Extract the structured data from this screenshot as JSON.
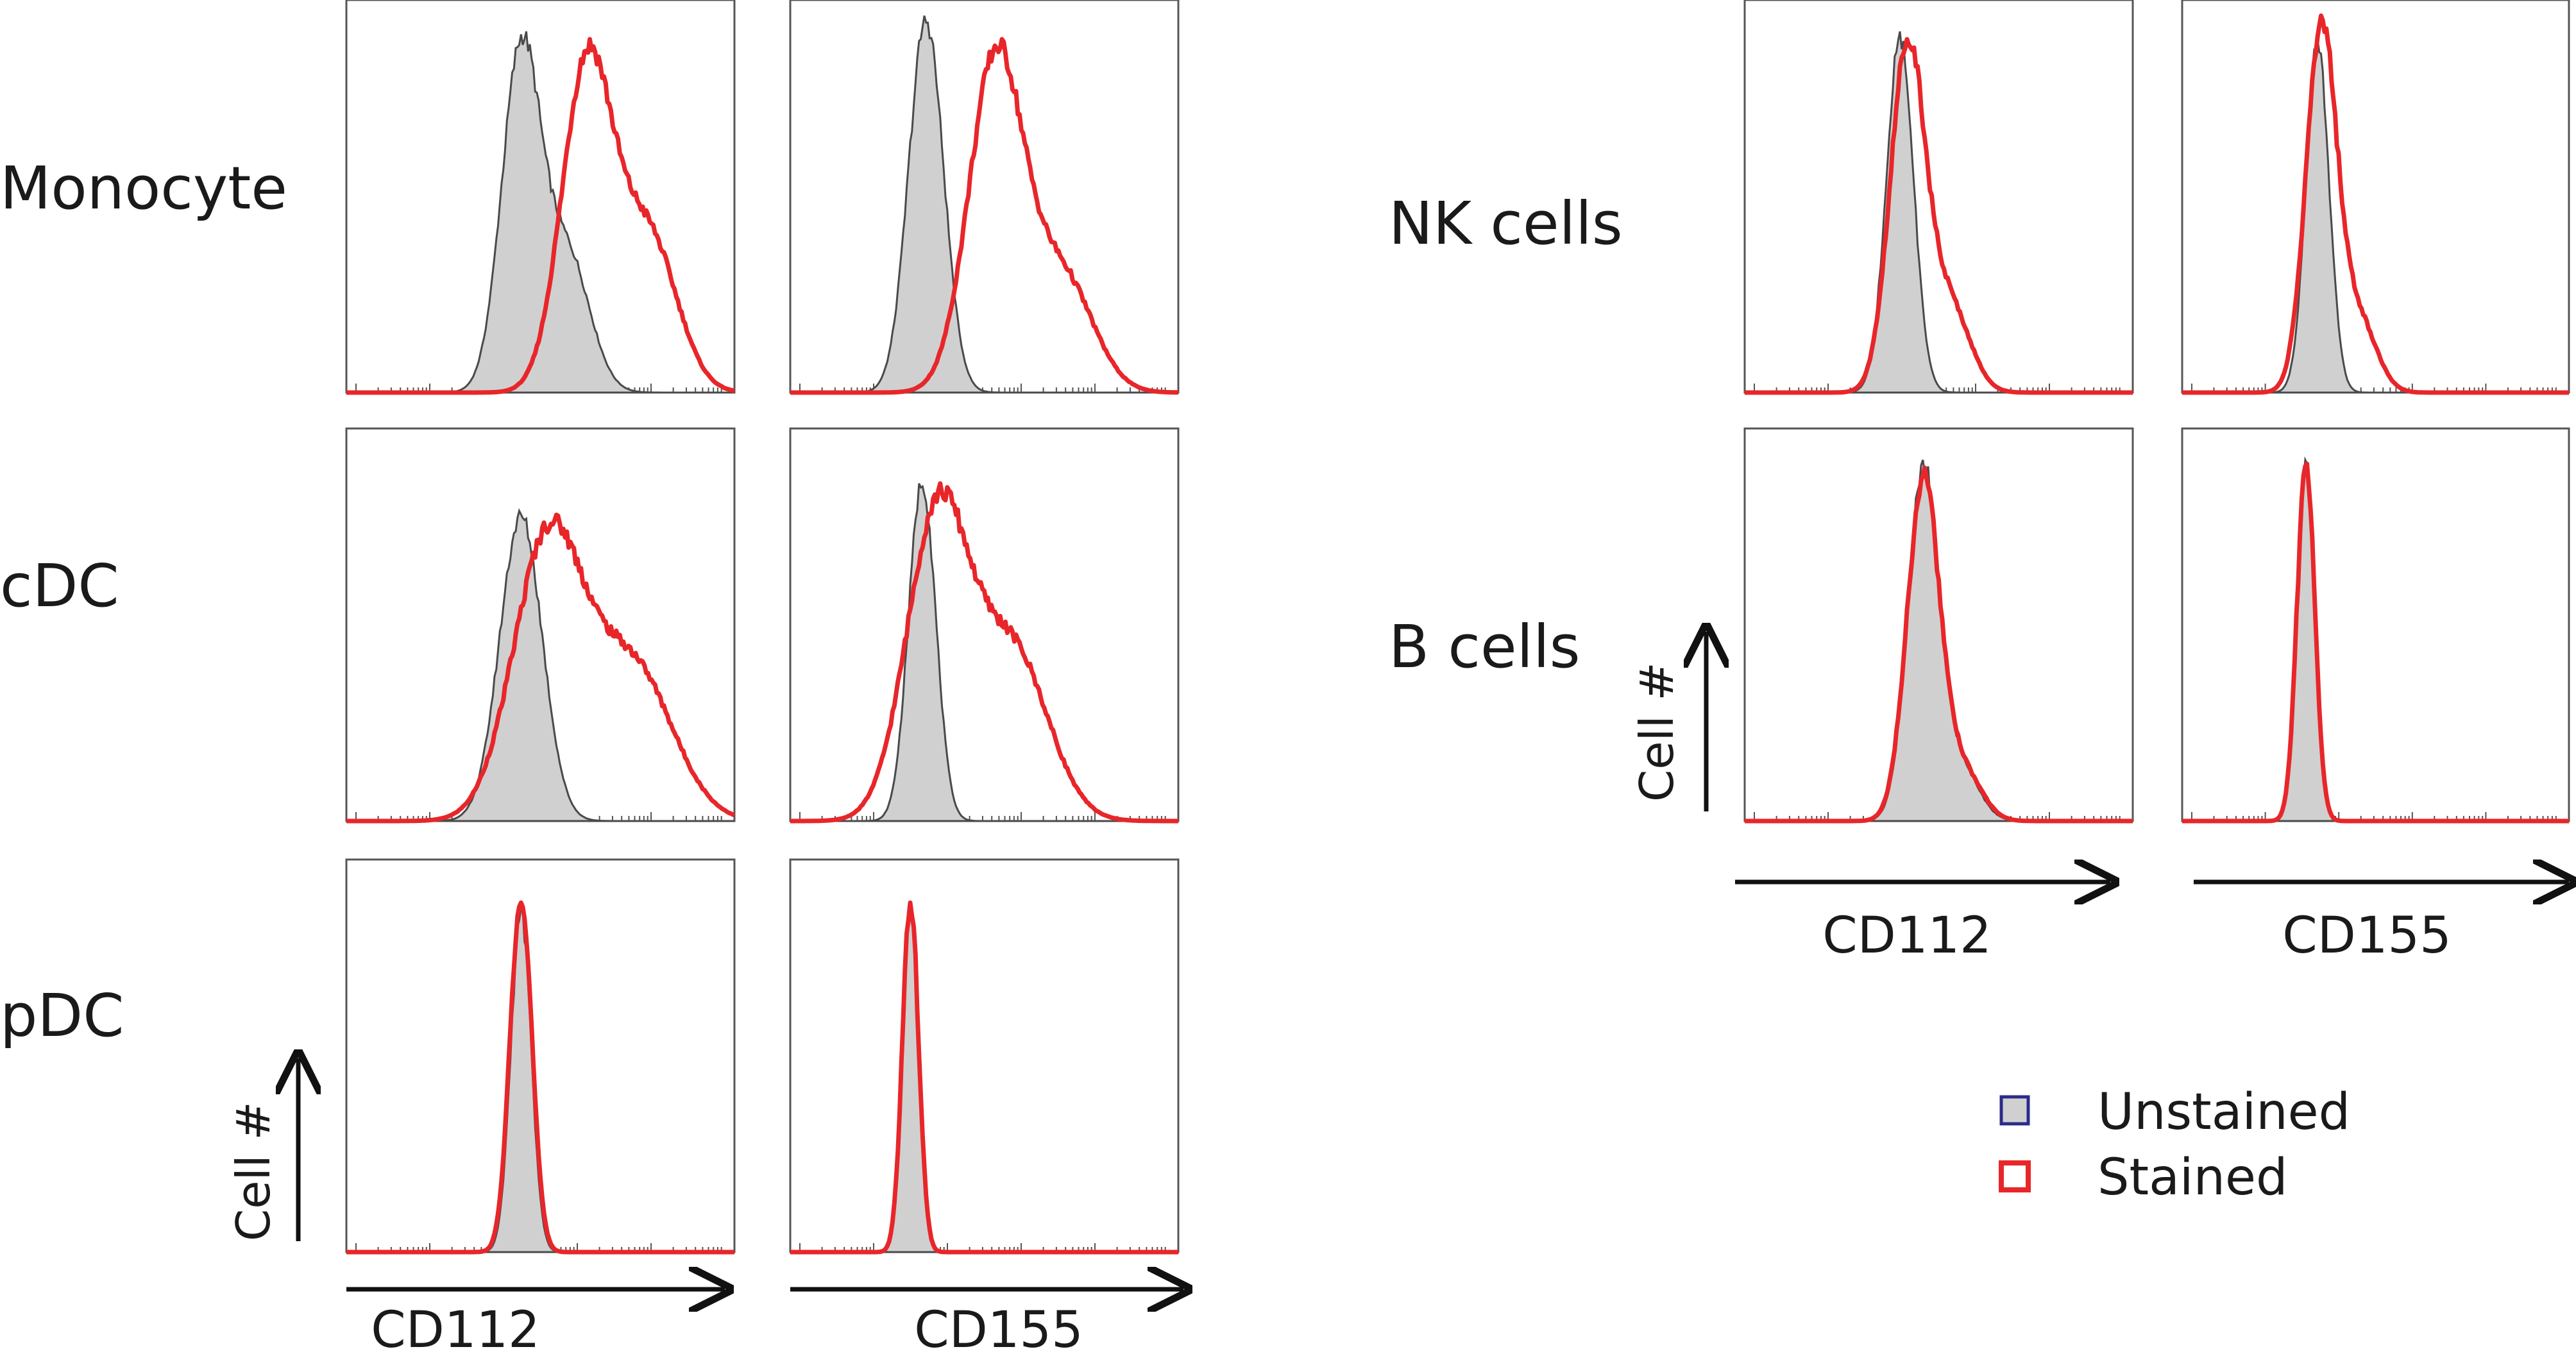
{
  "chart_data": {
    "type": "histogram-overlay",
    "title": "",
    "x_scale": "log fluorescence (arbitrary units)",
    "legend": {
      "position": "bottom-right",
      "items": [
        {
          "key": "unstained",
          "label": "Unstained",
          "fill": "#d0d0d0",
          "stroke": "#2b2b8a"
        },
        {
          "key": "stained",
          "label": "Stained",
          "fill": "#ffffff",
          "stroke": "#e8262a"
        }
      ]
    },
    "colors": {
      "unstained_fill": "#d0d0d0",
      "unstained_line": "#4a4a4a",
      "stained_line": "#e8262a",
      "frame": "#555555",
      "text": "#1a1a1a"
    },
    "x_label_text": {
      "cd112": "CD112",
      "cd155": "CD155"
    },
    "y_label_text": "Cell #",
    "groups": [
      {
        "name": "left",
        "x_labels": [
          "CD112",
          "CD155"
        ],
        "y_label": "Cell #",
        "rows": [
          {
            "label": "Monocyte",
            "panels": [
              {
                "marker": "CD112",
                "unstained": {
                  "mode": 0.45,
                  "sd": 0.05,
                  "shoulder": 0.4,
                  "height": 0.92
                },
                "stained": {
                  "mode": 0.62,
                  "sd": 0.065,
                  "shoulder": 0.48,
                  "height": 0.9
                }
              },
              {
                "marker": "CD155",
                "unstained": {
                  "mode": 0.35,
                  "sd": 0.045,
                  "shoulder": 0.0,
                  "height": 0.96
                },
                "stained": {
                  "mode": 0.53,
                  "sd": 0.07,
                  "shoulder": 0.35,
                  "height": 0.9
                }
              }
            ]
          },
          {
            "label": "cDC",
            "panels": [
              {
                "marker": "CD112",
                "unstained": {
                  "mode": 0.45,
                  "sd": 0.055,
                  "shoulder": 0.0,
                  "height": 0.79
                },
                "stained": {
                  "mode": 0.52,
                  "sd": 0.09,
                  "shoulder": 0.55,
                  "height": 0.78
                }
              },
              {
                "marker": "CD155",
                "unstained": {
                  "mode": 0.34,
                  "sd": 0.035,
                  "shoulder": 0.0,
                  "height": 0.86
                },
                "stained": {
                  "mode": 0.38,
                  "sd": 0.08,
                  "shoulder": 0.55,
                  "height": 0.86
                }
              }
            ]
          },
          {
            "label": "pDC",
            "panels": [
              {
                "marker": "CD112",
                "unstained": {
                  "mode": 0.45,
                  "sd": 0.026,
                  "shoulder": 0.0,
                  "height": 0.88
                },
                "stained": {
                  "mode": 0.45,
                  "sd": 0.028,
                  "shoulder": 0.0,
                  "height": 0.89
                }
              },
              {
                "marker": "CD155",
                "unstained": {
                  "mode": 0.31,
                  "sd": 0.02,
                  "shoulder": 0.0,
                  "height": 0.88
                },
                "stained": {
                  "mode": 0.31,
                  "sd": 0.021,
                  "shoulder": 0.0,
                  "height": 0.89
                }
              }
            ]
          }
        ]
      },
      {
        "name": "right",
        "x_labels": [
          "CD112",
          "CD155"
        ],
        "y_label": "Cell #",
        "rows": [
          {
            "label": "NK cells",
            "panels": [
              {
                "marker": "CD112",
                "unstained": {
                  "mode": 0.4,
                  "sd": 0.035,
                  "shoulder": 0.0,
                  "height": 0.92
                },
                "stained": {
                  "mode": 0.42,
                  "sd": 0.045,
                  "shoulder": 0.25,
                  "height": 0.9
                }
              },
              {
                "marker": "CD155",
                "unstained": {
                  "mode": 0.35,
                  "sd": 0.03,
                  "shoulder": 0.0,
                  "height": 0.9
                },
                "stained": {
                  "mode": 0.36,
                  "sd": 0.04,
                  "shoulder": 0.2,
                  "height": 0.96
                }
              }
            ]
          },
          {
            "label": "B cells",
            "panels": [
              {
                "marker": "CD112",
                "unstained": {
                  "mode": 0.46,
                  "sd": 0.04,
                  "shoulder": 0.15,
                  "height": 0.92
                },
                "stained": {
                  "mode": 0.46,
                  "sd": 0.042,
                  "shoulder": 0.15,
                  "height": 0.9
                }
              },
              {
                "marker": "CD155",
                "unstained": {
                  "mode": 0.32,
                  "sd": 0.022,
                  "shoulder": 0.0,
                  "height": 0.92
                },
                "stained": {
                  "mode": 0.32,
                  "sd": 0.023,
                  "shoulder": 0.0,
                  "height": 0.91
                }
              }
            ]
          }
        ]
      }
    ]
  }
}
